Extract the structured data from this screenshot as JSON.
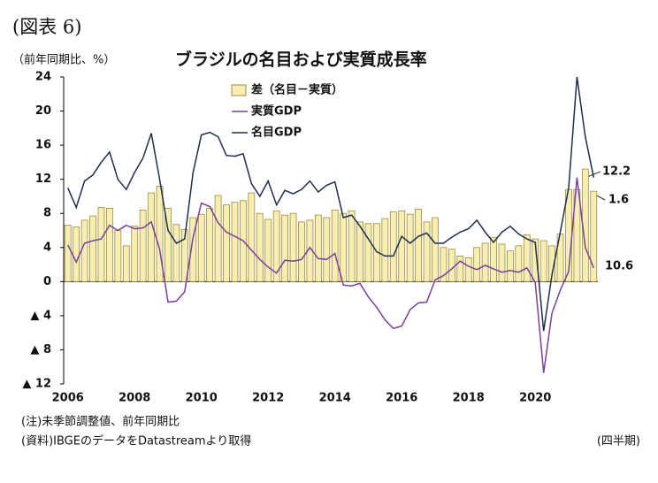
{
  "chart_data": {
    "type": "bar",
    "header": "(図表 6)",
    "title": "ブラジルの名目および実質成長率",
    "y_label": "（前年同期比、%）",
    "x_label": "(四半期)",
    "notes": [
      "(注)未季節調整値、前年同期比",
      "(資料)IBGEのデータをDatastreamより取得"
    ],
    "categories": [
      "2006",
      null,
      null,
      null,
      null,
      null,
      null,
      null,
      "2008",
      null,
      null,
      null,
      null,
      null,
      null,
      null,
      "2010",
      null,
      null,
      null,
      null,
      null,
      null,
      null,
      "2012",
      null,
      null,
      null,
      null,
      null,
      null,
      null,
      "2014",
      null,
      null,
      null,
      null,
      null,
      null,
      null,
      "2016",
      null,
      null,
      null,
      null,
      null,
      null,
      null,
      "2018",
      null,
      null,
      null,
      null,
      null,
      null,
      null,
      "2020",
      null,
      null,
      null,
      null,
      null,
      null,
      null
    ],
    "series": [
      {
        "name": "差（名目－実質）",
        "type": "bar",
        "color": "#f9eeb2",
        "values": [
          6.6,
          6.4,
          7.2,
          7.7,
          8.7,
          8.6,
          6.0,
          4.2,
          6.5,
          8.4,
          10.4,
          11.2,
          8.6,
          6.7,
          6.1,
          7.5,
          7.9,
          8.6,
          10.1,
          9.0,
          9.3,
          9.5,
          10.4,
          8.0,
          7.3,
          8.3,
          7.8,
          8.0,
          7.0,
          7.2,
          7.8,
          7.5,
          8.4,
          8.0,
          8.3,
          7.0,
          6.8,
          6.8,
          7.4,
          8.2,
          8.3,
          7.9,
          8.5,
          7.0,
          7.5,
          4.0,
          3.8,
          3.0,
          2.8,
          4.0,
          4.5,
          5.2,
          4.4,
          3.6,
          4.2,
          5.5,
          5.0,
          4.8,
          4.2,
          5.6,
          10.8,
          10.8,
          13.2,
          10.6
        ]
      },
      {
        "name": "実質GDP",
        "type": "line",
        "color": "#7b3f9e",
        "values": [
          4.3,
          2.3,
          4.5,
          4.8,
          5.0,
          6.6,
          6.0,
          6.6,
          6.2,
          6.3,
          7.0,
          3.8,
          -2.4,
          -2.3,
          -1.2,
          5.2,
          9.2,
          8.8,
          6.9,
          5.8,
          5.3,
          4.8,
          3.7,
          2.6,
          1.7,
          1.0,
          2.5,
          2.4,
          2.6,
          4.0,
          2.7,
          2.6,
          3.3,
          -0.4,
          -0.5,
          -0.2,
          -1.8,
          -3.0,
          -4.5,
          -5.5,
          -5.2,
          -3.3,
          -2.5,
          -2.4,
          0.2,
          0.7,
          1.5,
          2.4,
          1.8,
          1.4,
          1.9,
          1.5,
          1.1,
          1.3,
          1.1,
          1.6,
          -0.1,
          -10.7,
          -3.7,
          -1.0,
          1.2,
          12.2,
          4.0,
          1.6
        ]
      },
      {
        "name": "名目GDP",
        "type": "line",
        "color": "#1f2d4f",
        "values": [
          11.0,
          8.7,
          11.8,
          12.5,
          14.0,
          15.2,
          12.0,
          10.8,
          12.8,
          14.5,
          17.4,
          12.0,
          6.0,
          4.5,
          5.0,
          12.8,
          17.2,
          17.5,
          17.0,
          14.8,
          14.7,
          15.0,
          11.5,
          10.0,
          11.8,
          9.0,
          10.7,
          10.3,
          10.8,
          11.8,
          10.5,
          11.3,
          11.7,
          7.5,
          7.8,
          6.5,
          5.0,
          3.5,
          3.0,
          3.0,
          5.3,
          4.5,
          5.3,
          5.7,
          4.5,
          4.5,
          5.2,
          5.8,
          6.2,
          7.2,
          5.8,
          4.6,
          5.8,
          6.5,
          5.6,
          5.0,
          4.6,
          -5.8,
          0.8,
          5.8,
          11.0,
          24.0,
          17.0,
          12.2
        ]
      }
    ],
    "ylim": [
      -12,
      24
    ],
    "yticks": [
      {
        "value": -12,
        "label": "▲ 12"
      },
      {
        "value": -8,
        "label": "▲ 8"
      },
      {
        "value": -4,
        "label": "▲ 4"
      },
      0,
      4,
      8,
      12,
      16,
      20,
      24
    ],
    "grid": false
  }
}
